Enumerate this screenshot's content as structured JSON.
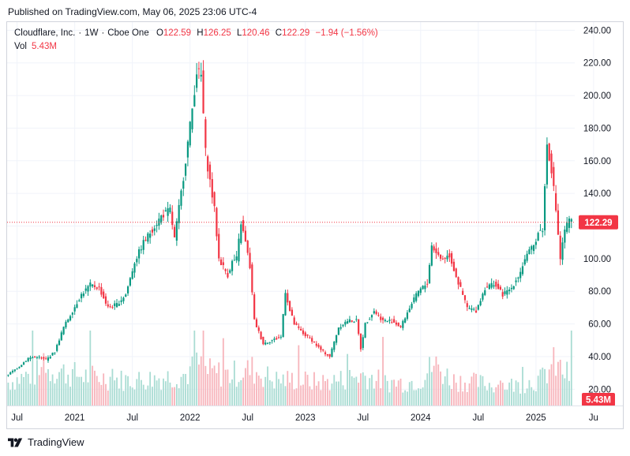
{
  "header": {
    "published": "Published on TradingView.com, May 06, 2025 23:06 UTC-4"
  },
  "legend": {
    "symbol": "Cloudflare, Inc.",
    "interval": "1W",
    "exchange": "Cboe One",
    "open_label": "O",
    "open": "122.59",
    "high_label": "H",
    "high": "126.25",
    "low_label": "L",
    "low": "120.46",
    "close_label": "C",
    "close": "122.29",
    "change": "−1.94 (−1.56%)",
    "vol_label": "Vol",
    "vol_value": "5.43M"
  },
  "footer": {
    "brand": "TradingView"
  },
  "colors": {
    "up": "#089981",
    "down": "#f23645",
    "up_vol": "#a9dcd3",
    "down_vol": "#f7b4bb"
  },
  "chart_data": {
    "type": "candlestick",
    "symbol": "Cloudflare, Inc.",
    "interval": "1W",
    "y_range": [
      10,
      245
    ],
    "y_ticks": [
      "240.00",
      "220.00",
      "200.00",
      "180.00",
      "160.00",
      "140.00",
      "120.00",
      "100.00",
      "80.00",
      "60.00",
      "40.00",
      "20.00"
    ],
    "x_ticks": [
      {
        "label": "Jul",
        "week": 4
      },
      {
        "label": "2021",
        "week": 30
      },
      {
        "label": "Jul",
        "week": 56
      },
      {
        "label": "2022",
        "week": 82
      },
      {
        "label": "Jul",
        "week": 108
      },
      {
        "label": "2023",
        "week": 134
      },
      {
        "label": "Jul",
        "week": 160
      },
      {
        "label": "2024",
        "week": 186
      },
      {
        "label": "Jul",
        "week": 212
      },
      {
        "label": "2025",
        "week": 238
      },
      {
        "label": "Ju",
        "week": 264
      }
    ],
    "last_price": "122.29",
    "last_volume": "5.43M",
    "grid": true,
    "anchors": [
      [
        0,
        28
      ],
      [
        6,
        34
      ],
      [
        10,
        39
      ],
      [
        14,
        40
      ],
      [
        18,
        38
      ],
      [
        22,
        43
      ],
      [
        26,
        58
      ],
      [
        30,
        68
      ],
      [
        34,
        78
      ],
      [
        38,
        84
      ],
      [
        42,
        82
      ],
      [
        46,
        70
      ],
      [
        50,
        72
      ],
      [
        54,
        78
      ],
      [
        58,
        98
      ],
      [
        62,
        110
      ],
      [
        66,
        118
      ],
      [
        70,
        126
      ],
      [
        74,
        130
      ],
      [
        76,
        112
      ],
      [
        80,
        150
      ],
      [
        84,
        192
      ],
      [
        86,
        215
      ],
      [
        88,
        212
      ],
      [
        90,
        165
      ],
      [
        94,
        130
      ],
      [
        96,
        100
      ],
      [
        100,
        90
      ],
      [
        102,
        98
      ],
      [
        104,
        100
      ],
      [
        106,
        122
      ],
      [
        108,
        110
      ],
      [
        110,
        95
      ],
      [
        112,
        62
      ],
      [
        116,
        48
      ],
      [
        120,
        50
      ],
      [
        124,
        52
      ],
      [
        126,
        80
      ],
      [
        128,
        68
      ],
      [
        130,
        60
      ],
      [
        134,
        54
      ],
      [
        138,
        50
      ],
      [
        142,
        44
      ],
      [
        146,
        40
      ],
      [
        150,
        58
      ],
      [
        154,
        62
      ],
      [
        158,
        62
      ],
      [
        160,
        45
      ],
      [
        162,
        60
      ],
      [
        166,
        68
      ],
      [
        170,
        62
      ],
      [
        174,
        62
      ],
      [
        178,
        58
      ],
      [
        182,
        70
      ],
      [
        186,
        80
      ],
      [
        190,
        85
      ],
      [
        192,
        108
      ],
      [
        196,
        100
      ],
      [
        200,
        102
      ],
      [
        204,
        85
      ],
      [
        208,
        70
      ],
      [
        212,
        68
      ],
      [
        216,
        82
      ],
      [
        220,
        85
      ],
      [
        224,
        78
      ],
      [
        228,
        82
      ],
      [
        232,
        92
      ],
      [
        234,
        100
      ],
      [
        238,
        108
      ],
      [
        240,
        116
      ],
      [
        242,
        118
      ],
      [
        244,
        170
      ],
      [
        246,
        155
      ],
      [
        248,
        130
      ],
      [
        250,
        100
      ],
      [
        252,
        118
      ],
      [
        254,
        123
      ]
    ],
    "volume_anchors": [
      [
        0,
        4.5
      ],
      [
        10,
        6
      ],
      [
        20,
        7
      ],
      [
        30,
        6
      ],
      [
        40,
        5.5
      ],
      [
        50,
        5
      ],
      [
        60,
        5
      ],
      [
        70,
        5.5
      ],
      [
        80,
        6
      ],
      [
        86,
        8
      ],
      [
        90,
        6.5
      ],
      [
        100,
        6
      ],
      [
        110,
        7
      ],
      [
        120,
        5
      ],
      [
        130,
        5
      ],
      [
        140,
        4.5
      ],
      [
        150,
        5
      ],
      [
        160,
        6
      ],
      [
        170,
        4.5
      ],
      [
        180,
        4.5
      ],
      [
        186,
        5
      ],
      [
        192,
        8
      ],
      [
        200,
        5
      ],
      [
        210,
        4.5
      ],
      [
        220,
        4
      ],
      [
        230,
        4
      ],
      [
        240,
        5
      ],
      [
        246,
        8
      ],
      [
        254,
        5.43
      ]
    ]
  }
}
